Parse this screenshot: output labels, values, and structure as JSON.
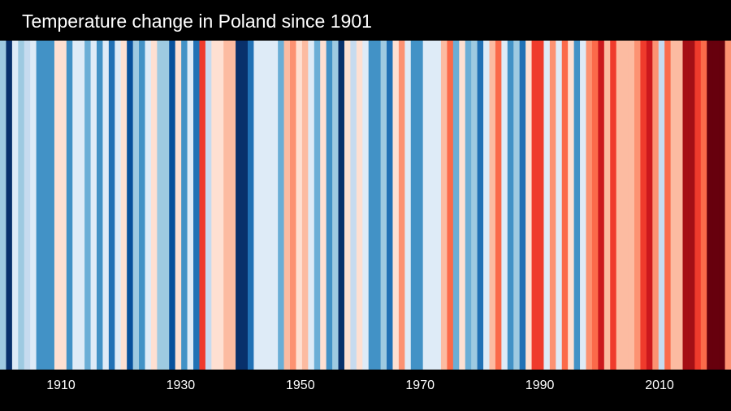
{
  "title": "Temperature change in Poland since 1901",
  "chart_data": {
    "type": "heatmap",
    "title": "Temperature change in Poland since 1901",
    "x_start_year": 1901,
    "x_end_year": 2021,
    "xticks": [
      "1910",
      "1930",
      "1950",
      "1970",
      "1990",
      "2010"
    ],
    "legend": "none",
    "grid": false,
    "colors": [
      "#9ecae1",
      "#08306b",
      "#deebf7",
      "#9ecae1",
      "#c6dbef",
      "#deebf7",
      "#4292c6",
      "#4292c6",
      "#4292c6",
      "#fee0d2",
      "#fee0d2",
      "#4292c6",
      "#deebf7",
      "#deebf7",
      "#6baed6",
      "#deebf7",
      "#4292c6",
      "#deebf7",
      "#2171b5",
      "#deebf7",
      "#fee0d2",
      "#08519c",
      "#9ecae1",
      "#4292c6",
      "#deebf7",
      "#fee0d2",
      "#9ecae1",
      "#9ecae1",
      "#08519c",
      "#fee0d2",
      "#4292c6",
      "#deebf7",
      "#2171b5",
      "#ef3b2c",
      "#c6dbef",
      "#fee0d2",
      "#fee0d2",
      "#fcbba1",
      "#fcbba1",
      "#08306b",
      "#08306b",
      "#2171b5",
      "#deebf7",
      "#deebf7",
      "#deebf7",
      "#deebf7",
      "#6baed6",
      "#fcbba1",
      "#fc9272",
      "#fee0d2",
      "#fcbba1",
      "#deebf7",
      "#6baed6",
      "#fee0d2",
      "#4292c6",
      "#9ecae1",
      "#08306b",
      "#fee0d2",
      "#c6dbef",
      "#fee0d2",
      "#deebf7",
      "#4292c6",
      "#4292c6",
      "#9ecae1",
      "#2171b5",
      "#fee0d2",
      "#fc9272",
      "#deebf7",
      "#4292c6",
      "#4292c6",
      "#deebf7",
      "#deebf7",
      "#deebf7",
      "#fcbba1",
      "#fb6a4a",
      "#6baed6",
      "#fee0d2",
      "#6baed6",
      "#9ecae1",
      "#2171b5",
      "#deebf7",
      "#fcbba1",
      "#fb6a4a",
      "#deebf7",
      "#4292c6",
      "#9ecae1",
      "#2171b5",
      "#fee0d2",
      "#ef3b2c",
      "#ef3b2c",
      "#deebf7",
      "#fc9272",
      "#deebf7",
      "#fb6a4a",
      "#fee0d2",
      "#4292c6",
      "#deebf7",
      "#fc9272",
      "#fb6a4a",
      "#cb181d",
      "#fcbba1",
      "#ef3b2c",
      "#fcbba1",
      "#fcbba1",
      "#fcbba1",
      "#fc9272",
      "#ef3b2c",
      "#cb181d",
      "#fc9272",
      "#c6dbef",
      "#fb6a4a",
      "#fcbba1",
      "#fcbba1",
      "#a50f15",
      "#a50f15",
      "#ef3b2c",
      "#fb6a4a",
      "#67000d",
      "#67000d",
      "#67000d",
      "#fc9272"
    ]
  }
}
